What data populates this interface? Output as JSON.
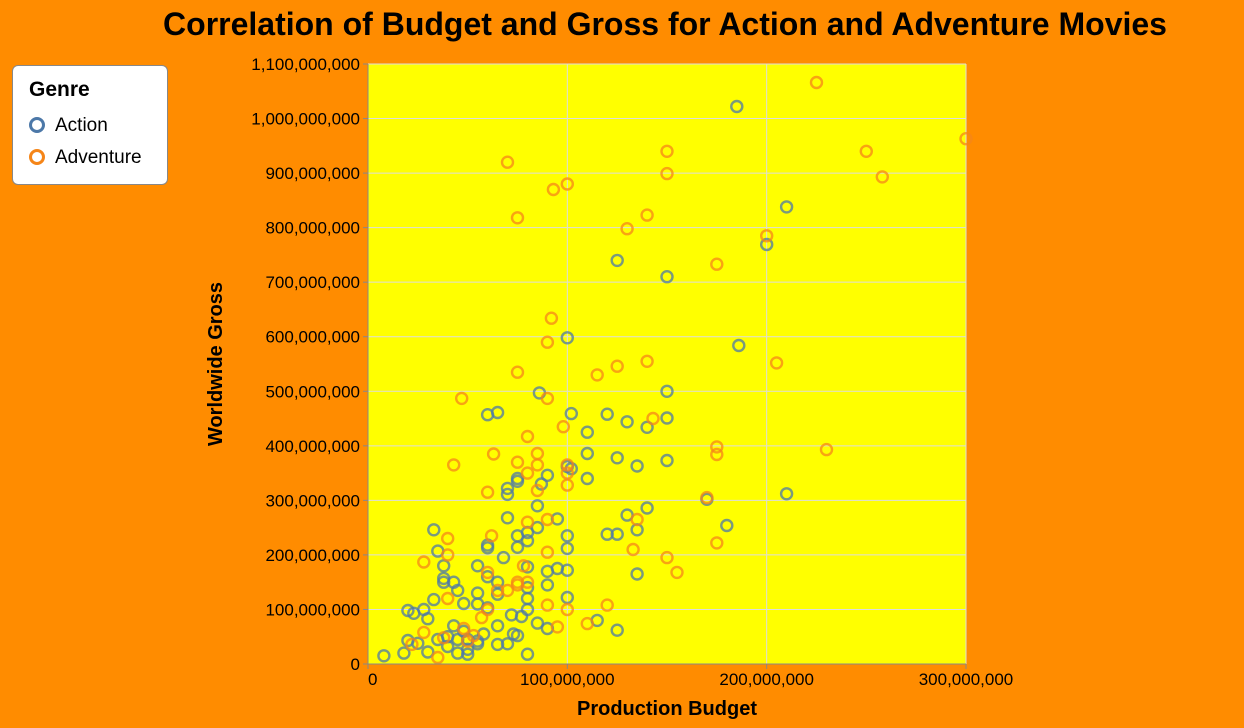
{
  "chart_data": {
    "type": "scatter",
    "title": "Correlation of Budget and Gross for Action and Adventure Movies",
    "xlabel": "Production Budget",
    "ylabel": "Worldwide Gross",
    "xlim": [
      0,
      300000000
    ],
    "ylim": [
      0,
      1100000000
    ],
    "x_ticks": [
      {
        "value": 0,
        "label": "0"
      },
      {
        "value": 100000000,
        "label": "100,000,000"
      },
      {
        "value": 200000000,
        "label": "200,000,000"
      },
      {
        "value": 300000000,
        "label": "300,000,000"
      }
    ],
    "y_ticks": [
      {
        "value": 0,
        "label": "0"
      },
      {
        "value": 100000000,
        "label": "100,000,000"
      },
      {
        "value": 200000000,
        "label": "200,000,000"
      },
      {
        "value": 300000000,
        "label": "300,000,000"
      },
      {
        "value": 400000000,
        "label": "400,000,000"
      },
      {
        "value": 500000000,
        "label": "500,000,000"
      },
      {
        "value": 600000000,
        "label": "600,000,000"
      },
      {
        "value": 700000000,
        "label": "700,000,000"
      },
      {
        "value": 800000000,
        "label": "800,000,000"
      },
      {
        "value": 900000000,
        "label": "900,000,000"
      },
      {
        "value": 1000000000,
        "label": "1,000,000,000"
      },
      {
        "value": 1100000000,
        "label": "1,100,000,000"
      }
    ],
    "grid": true,
    "legend_position": "top-left",
    "legend_title": "Genre",
    "plot_background": "#FFFF00",
    "page_background": "#FF8C00",
    "series": [
      {
        "name": "Action",
        "color": "#4C78A8",
        "points": [
          [
            185000000,
            1022000000
          ],
          [
            210000000,
            838000000
          ],
          [
            200000000,
            769000000
          ],
          [
            125000000,
            740000000
          ],
          [
            150000000,
            710000000
          ],
          [
            186000000,
            584000000
          ],
          [
            100000000,
            598000000
          ],
          [
            150000000,
            500000000
          ],
          [
            86000000,
            497000000
          ],
          [
            60000000,
            457000000
          ],
          [
            65000000,
            461000000
          ],
          [
            102000000,
            459000000
          ],
          [
            120000000,
            458000000
          ],
          [
            150000000,
            451000000
          ],
          [
            130000000,
            444000000
          ],
          [
            140000000,
            434000000
          ],
          [
            110000000,
            425000000
          ],
          [
            110000000,
            386000000
          ],
          [
            125000000,
            378000000
          ],
          [
            150000000,
            373000000
          ],
          [
            135000000,
            363000000
          ],
          [
            100000000,
            362000000
          ],
          [
            102000000,
            358000000
          ],
          [
            90000000,
            346000000
          ],
          [
            75000000,
            340000000
          ],
          [
            75000000,
            335000000
          ],
          [
            110000000,
            340000000
          ],
          [
            87000000,
            330000000
          ],
          [
            70000000,
            322000000
          ],
          [
            70000000,
            311000000
          ],
          [
            210000000,
            312000000
          ],
          [
            170000000,
            302000000
          ],
          [
            85000000,
            290000000
          ],
          [
            140000000,
            286000000
          ],
          [
            130000000,
            273000000
          ],
          [
            95000000,
            266000000
          ],
          [
            70000000,
            268000000
          ],
          [
            180000000,
            254000000
          ],
          [
            85000000,
            250000000
          ],
          [
            33000000,
            246000000
          ],
          [
            135000000,
            246000000
          ],
          [
            80000000,
            241000000
          ],
          [
            120000000,
            238000000
          ],
          [
            125000000,
            238000000
          ],
          [
            75000000,
            235000000
          ],
          [
            100000000,
            235000000
          ],
          [
            80000000,
            226000000
          ],
          [
            75000000,
            214000000
          ],
          [
            60000000,
            218000000
          ],
          [
            60000000,
            213000000
          ],
          [
            100000000,
            212000000
          ],
          [
            35000000,
            207000000
          ],
          [
            68000000,
            195000000
          ],
          [
            55000000,
            180000000
          ],
          [
            38000000,
            180000000
          ],
          [
            80000000,
            178000000
          ],
          [
            95000000,
            175000000
          ],
          [
            100000000,
            172000000
          ],
          [
            90000000,
            170000000
          ],
          [
            135000000,
            165000000
          ],
          [
            60000000,
            160000000
          ],
          [
            38000000,
            157000000
          ],
          [
            65000000,
            150000000
          ],
          [
            38000000,
            150000000
          ],
          [
            43000000,
            150000000
          ],
          [
            90000000,
            145000000
          ],
          [
            80000000,
            140000000
          ],
          [
            45000000,
            135000000
          ],
          [
            55000000,
            130000000
          ],
          [
            65000000,
            128000000
          ],
          [
            100000000,
            122000000
          ],
          [
            80000000,
            120000000
          ],
          [
            33000000,
            118000000
          ],
          [
            48000000,
            111000000
          ],
          [
            55000000,
            110000000
          ],
          [
            60000000,
            103000000
          ],
          [
            80000000,
            100000000
          ],
          [
            20000000,
            98000000
          ],
          [
            28000000,
            100000000
          ],
          [
            23000000,
            93000000
          ],
          [
            72000000,
            90000000
          ],
          [
            77000000,
            87000000
          ],
          [
            30000000,
            83000000
          ],
          [
            115000000,
            80000000
          ],
          [
            85000000,
            75000000
          ],
          [
            43000000,
            70000000
          ],
          [
            65000000,
            70000000
          ],
          [
            90000000,
            65000000
          ],
          [
            125000000,
            62000000
          ],
          [
            48000000,
            60000000
          ],
          [
            58000000,
            55000000
          ],
          [
            73000000,
            55000000
          ],
          [
            75000000,
            52000000
          ],
          [
            40000000,
            50000000
          ],
          [
            35000000,
            45000000
          ],
          [
            45000000,
            45000000
          ],
          [
            50000000,
            45000000
          ],
          [
            55000000,
            42000000
          ],
          [
            20000000,
            43000000
          ],
          [
            25000000,
            38000000
          ],
          [
            55000000,
            37000000
          ],
          [
            65000000,
            36000000
          ],
          [
            70000000,
            37000000
          ],
          [
            40000000,
            32000000
          ],
          [
            50000000,
            27000000
          ],
          [
            30000000,
            22000000
          ],
          [
            45000000,
            20000000
          ],
          [
            50000000,
            18000000
          ],
          [
            80000000,
            18000000
          ],
          [
            18000000,
            20000000
          ],
          [
            8000000,
            15000000
          ]
        ]
      },
      {
        "name": "Adventure",
        "color": "#F58518",
        "points": [
          [
            225000000,
            1066000000
          ],
          [
            300000000,
            963000000
          ],
          [
            150000000,
            940000000
          ],
          [
            250000000,
            940000000
          ],
          [
            70000000,
            920000000
          ],
          [
            258000000,
            893000000
          ],
          [
            150000000,
            899000000
          ],
          [
            100000000,
            880000000
          ],
          [
            93000000,
            870000000
          ],
          [
            75000000,
            818000000
          ],
          [
            140000000,
            823000000
          ],
          [
            130000000,
            798000000
          ],
          [
            200000000,
            785000000
          ],
          [
            175000000,
            733000000
          ],
          [
            92000000,
            634000000
          ],
          [
            90000000,
            590000000
          ],
          [
            140000000,
            555000000
          ],
          [
            205000000,
            552000000
          ],
          [
            125000000,
            546000000
          ],
          [
            75000000,
            535000000
          ],
          [
            115000000,
            530000000
          ],
          [
            47000000,
            487000000
          ],
          [
            90000000,
            487000000
          ],
          [
            143000000,
            450000000
          ],
          [
            98000000,
            435000000
          ],
          [
            80000000,
            417000000
          ],
          [
            175000000,
            398000000
          ],
          [
            230000000,
            393000000
          ],
          [
            85000000,
            386000000
          ],
          [
            175000000,
            384000000
          ],
          [
            63000000,
            385000000
          ],
          [
            43000000,
            365000000
          ],
          [
            75000000,
            370000000
          ],
          [
            85000000,
            365000000
          ],
          [
            100000000,
            365000000
          ],
          [
            100000000,
            350000000
          ],
          [
            80000000,
            350000000
          ],
          [
            100000000,
            328000000
          ],
          [
            85000000,
            318000000
          ],
          [
            60000000,
            315000000
          ],
          [
            170000000,
            305000000
          ],
          [
            90000000,
            265000000
          ],
          [
            80000000,
            260000000
          ],
          [
            135000000,
            265000000
          ],
          [
            40000000,
            230000000
          ],
          [
            62000000,
            235000000
          ],
          [
            175000000,
            222000000
          ],
          [
            133000000,
            210000000
          ],
          [
            90000000,
            205000000
          ],
          [
            150000000,
            195000000
          ],
          [
            40000000,
            200000000
          ],
          [
            28000000,
            187000000
          ],
          [
            78000000,
            180000000
          ],
          [
            155000000,
            168000000
          ],
          [
            60000000,
            168000000
          ],
          [
            75000000,
            150000000
          ],
          [
            80000000,
            150000000
          ],
          [
            75000000,
            145000000
          ],
          [
            70000000,
            135000000
          ],
          [
            65000000,
            135000000
          ],
          [
            40000000,
            120000000
          ],
          [
            120000000,
            108000000
          ],
          [
            90000000,
            108000000
          ],
          [
            100000000,
            100000000
          ],
          [
            60000000,
            100000000
          ],
          [
            57000000,
            85000000
          ],
          [
            110000000,
            74000000
          ],
          [
            95000000,
            68000000
          ],
          [
            48000000,
            65000000
          ],
          [
            28000000,
            58000000
          ],
          [
            53000000,
            52000000
          ],
          [
            38000000,
            48000000
          ],
          [
            50000000,
            42000000
          ],
          [
            22000000,
            36000000
          ],
          [
            35000000,
            12000000
          ]
        ]
      }
    ]
  }
}
